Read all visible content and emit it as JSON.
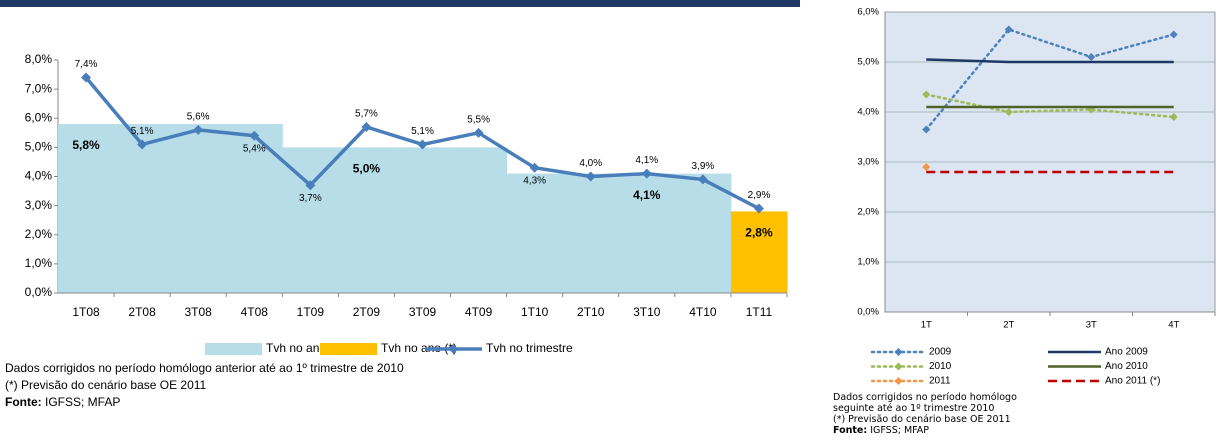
{
  "chart_data": [
    {
      "type": "combo",
      "categories": [
        "1T08",
        "2T08",
        "3T08",
        "4T08",
        "1T09",
        "2T09",
        "3T09",
        "4T09",
        "1T10",
        "2T10",
        "3T10",
        "4T10",
        "1T11"
      ],
      "ylim": [
        0,
        8
      ],
      "yticks": [
        {
          "value": 0,
          "label": "0,0%"
        },
        {
          "value": 1,
          "label": "1,0%"
        },
        {
          "value": 2,
          "label": "2,0%"
        },
        {
          "value": 3,
          "label": "3,0%"
        },
        {
          "value": 4,
          "label": "4,0%"
        },
        {
          "value": 5,
          "label": "5,0%"
        },
        {
          "value": 6,
          "label": "6,0%"
        },
        {
          "value": 7,
          "label": "7,0%"
        },
        {
          "value": 8,
          "label": "8,0%"
        }
      ],
      "series": [
        {
          "name": "Tvh no ano",
          "kind": "area",
          "color": "#b7dde8",
          "values": [
            5.8,
            5.8,
            5.8,
            5.8,
            5.0,
            5.0,
            5.0,
            5.0,
            4.1,
            4.1,
            4.1,
            4.1,
            null
          ],
          "value_labels": [
            "5,8%",
            null,
            null,
            null,
            null,
            "5,0%",
            null,
            null,
            null,
            null,
            "4,1%",
            null,
            null
          ]
        },
        {
          "name": "Tvh no ano (*)",
          "kind": "area",
          "color": "#ffc000",
          "values": [
            null,
            null,
            null,
            null,
            null,
            null,
            null,
            null,
            null,
            null,
            null,
            null,
            2.8
          ],
          "value_labels": [
            null,
            null,
            null,
            null,
            null,
            null,
            null,
            null,
            null,
            null,
            null,
            null,
            "2,8%"
          ]
        },
        {
          "name": "Tvh no trimestre",
          "kind": "line",
          "color": "#4a7ebb",
          "marker": true,
          "values": [
            7.4,
            5.1,
            5.6,
            5.4,
            3.7,
            5.7,
            5.1,
            5.5,
            4.3,
            4.0,
            4.1,
            3.9,
            2.9
          ],
          "value_labels": [
            "7,4%",
            "5,1%",
            "5,6%",
            "5,4%",
            "3,7%",
            "5,7%",
            "5,1%",
            "5,5%",
            "4,3%",
            "4,0%",
            "4,1%",
            "3,9%",
            "2,9%"
          ]
        }
      ],
      "notes": [
        "Dados corrigidos no período homólogo anterior até ao 1º trimestre de 2010",
        "(*) Previsão do cenário base OE 2011"
      ],
      "source_label": "Fonte:",
      "source": "IGFSS; MFAP"
    },
    {
      "type": "line",
      "categories": [
        "1T",
        "2T",
        "3T",
        "4T"
      ],
      "ylim": [
        0,
        6
      ],
      "yticks": [
        {
          "value": 0,
          "label": "0,0%"
        },
        {
          "value": 1,
          "label": "1,0%"
        },
        {
          "value": 2,
          "label": "2,0%"
        },
        {
          "value": 3,
          "label": "3,0%"
        },
        {
          "value": 4,
          "label": "4,0%"
        },
        {
          "value": 5,
          "label": "5,0%"
        },
        {
          "value": 6,
          "label": "6,0%"
        }
      ],
      "grid": true,
      "background": "#dce6f2",
      "series": [
        {
          "name": "2009",
          "color": "#4f81bd",
          "dash": "dotted",
          "marker": true,
          "values": [
            3.65,
            5.65,
            5.1,
            5.55
          ]
        },
        {
          "name": "Ano 2009",
          "color": "#1f3864",
          "dash": "solid",
          "values": [
            5.05,
            5.0,
            5.0,
            5.0
          ]
        },
        {
          "name": "2010",
          "color": "#9bbb59",
          "dash": "dotted",
          "marker": true,
          "values": [
            4.35,
            4.0,
            4.05,
            3.9
          ]
        },
        {
          "name": "Ano 2010",
          "color": "#4f6228",
          "dash": "solid",
          "values": [
            4.1,
            4.1,
            4.1,
            4.1
          ]
        },
        {
          "name": "2011",
          "color": "#f79646",
          "dash": "dotted",
          "marker": true,
          "values": [
            2.9,
            null,
            null,
            null
          ]
        },
        {
          "name": "Ano 2011 (*)",
          "color": "#c00000",
          "dash": "dashed",
          "values": [
            2.8,
            2.8,
            2.8,
            2.8
          ]
        }
      ],
      "notes": [
        "Dados corrigidos no período homólogo seguinte até ao 1º trimestre 2010",
        "(*) Previsão do cenário base OE 2011"
      ],
      "source_label": "Fonte:",
      "source": "IGFSS; MFAP"
    }
  ]
}
